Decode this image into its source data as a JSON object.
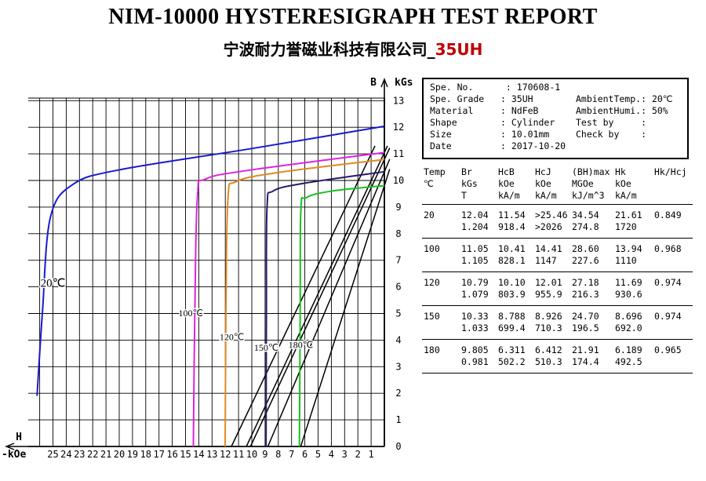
{
  "header": {
    "title": "NIM-10000 HYSTERESIGRAPH TEST REPORT",
    "subtitle_company": "宁波耐力誉磁业科技有限公司_",
    "subtitle_grade": "35UH",
    "grade_color": "#c00000"
  },
  "info": {
    "spe_no_label": "Spe. No.",
    "spe_no": "170608-1",
    "spe_grade_label": "Spe. Grade",
    "spe_grade": "35UH",
    "material_label": "Material",
    "material": "NdFeB",
    "shape_label": "Shape",
    "shape": "Cylinder",
    "size_label": "Size",
    "size": "10.01mm",
    "date_label": "Date",
    "date": "2017-10-20",
    "ambient_temp_label": "AmbientTemp.",
    "ambient_temp": "20℃",
    "ambient_humi_label": "AmbientHumi.",
    "ambient_humi": "50%",
    "test_by_label": "Test by",
    "test_by": "",
    "check_by_label": "Check by",
    "check_by": ""
  },
  "table": {
    "headers": [
      [
        "Temp",
        "℃",
        ""
      ],
      [
        "Br",
        "kGs",
        "T"
      ],
      [
        "HcB",
        "kOe",
        "kA/m"
      ],
      [
        "HcJ",
        "kOe",
        "kA/m"
      ],
      [
        "(BH)max",
        "MGOe",
        "kJ/m^3"
      ],
      [
        "Hk",
        "kOe",
        "kA/m"
      ],
      [
        "Hk/Hcj",
        "",
        ""
      ]
    ],
    "rows": [
      {
        "temp": "20",
        "br1": "12.04",
        "br2": "1.204",
        "hcb1": "11.54",
        "hcb2": "918.4",
        "hcj1": ">25.46",
        "hcj2": ">2026",
        "bh1": "34.54",
        "bh2": "274.8",
        "hk1": "21.61",
        "hk2": "1720",
        "ratio": "0.849"
      },
      {
        "temp": "100",
        "br1": "11.05",
        "br2": "1.105",
        "hcb1": "10.41",
        "hcb2": "828.1",
        "hcj1": "14.41",
        "hcj2": "1147",
        "bh1": "28.60",
        "bh2": "227.6",
        "hk1": "13.94",
        "hk2": "1110",
        "ratio": "0.968"
      },
      {
        "temp": "120",
        "br1": "10.79",
        "br2": "1.079",
        "hcb1": "10.10",
        "hcb2": "803.9",
        "hcj1": "12.01",
        "hcj2": "955.9",
        "bh1": "27.18",
        "bh2": "216.3",
        "hk1": "11.69",
        "hk2": "930.6",
        "ratio": "0.974"
      },
      {
        "temp": "150",
        "br1": "10.33",
        "br2": "1.033",
        "hcb1": "8.788",
        "hcb2": "699.4",
        "hcj1": "8.926",
        "hcj2": "710.3",
        "bh1": "24.70",
        "bh2": "196.5",
        "hk1": "8.696",
        "hk2": "692.0",
        "ratio": "0.974"
      },
      {
        "temp": "180",
        "br1": "9.805",
        "br2": "0.981",
        "hcb1": "6.311",
        "hcb2": "502.2",
        "hcj1": "6.412",
        "hcj2": "510.3",
        "bh1": "21.91",
        "bh2": "174.4",
        "hk1": "6.189",
        "hk2": "492.5",
        "ratio": "0.965"
      }
    ]
  },
  "chart_data": {
    "type": "line",
    "title": "",
    "xlabel": "H",
    "xunit": "-kOe",
    "ylabel": "B",
    "yunit": "kGs",
    "xlim": [
      27,
      0
    ],
    "ylim": [
      0,
      13.5
    ],
    "x_ticks": [
      25,
      24,
      23,
      22,
      21,
      20,
      19,
      18,
      17,
      16,
      15,
      14,
      13,
      12,
      11,
      10,
      9,
      8,
      7,
      6,
      5,
      4,
      3,
      2,
      1
    ],
    "y_ticks": [
      0,
      1,
      2,
      3,
      4,
      5,
      6,
      7,
      8,
      9,
      10,
      11,
      12,
      13
    ],
    "grid": true,
    "series": [
      {
        "name": "20℃",
        "color": "#1a1ad0",
        "label_at": [
          25,
          6
        ],
        "J": [
          [
            0,
            12.04
          ],
          [
            10,
            11.2
          ],
          [
            20,
            10.4
          ],
          [
            23.5,
            9.85
          ],
          [
            25.2,
            8.6
          ],
          [
            25.8,
            5
          ],
          [
            26.2,
            1.9
          ]
        ],
        "B_line": [
          [
            0,
            12.04
          ],
          [
            11.54,
            0
          ]
        ]
      },
      {
        "name": "100℃",
        "color": "#dd22dd",
        "label_at": [
          14.6,
          4.9
        ],
        "J": [
          [
            0,
            11.05
          ],
          [
            10,
            10.4
          ],
          [
            13.5,
            10.05
          ],
          [
            14.1,
            9.4
          ],
          [
            14.3,
            5
          ],
          [
            14.41,
            0
          ]
        ],
        "B_line": [
          [
            0,
            11.05
          ],
          [
            10.41,
            0
          ]
        ]
      },
      {
        "name": "120℃",
        "color": "#e08a1e",
        "label_at": [
          11.5,
          4.0
        ],
        "J": [
          [
            0,
            10.79
          ],
          [
            8,
            10.3
          ],
          [
            11.2,
            9.95
          ],
          [
            11.8,
            9.3
          ],
          [
            11.95,
            5
          ],
          [
            12.01,
            0
          ]
        ],
        "B_line": [
          [
            0,
            10.79
          ],
          [
            10.1,
            0
          ]
        ]
      },
      {
        "name": "150℃",
        "color": "#2a1a6a",
        "label_at": [
          8.9,
          3.6
        ],
        "J": [
          [
            0,
            10.33
          ],
          [
            6,
            9.9
          ],
          [
            8.4,
            9.6
          ],
          [
            8.85,
            9.0
          ],
          [
            8.9,
            5
          ],
          [
            8.926,
            0
          ]
        ],
        "B_line": [
          [
            0,
            10.33
          ],
          [
            8.788,
            0
          ]
        ]
      },
      {
        "name": "180℃",
        "color": "#18c020",
        "label_at": [
          6.3,
          3.7
        ],
        "J": [
          [
            0,
            9.805
          ],
          [
            4,
            9.6
          ],
          [
            5.9,
            9.35
          ],
          [
            6.3,
            8.9
          ],
          [
            6.35,
            5
          ],
          [
            6.412,
            0
          ]
        ],
        "B_line": [
          [
            0,
            9.805
          ],
          [
            6.311,
            0
          ]
        ]
      }
    ]
  }
}
